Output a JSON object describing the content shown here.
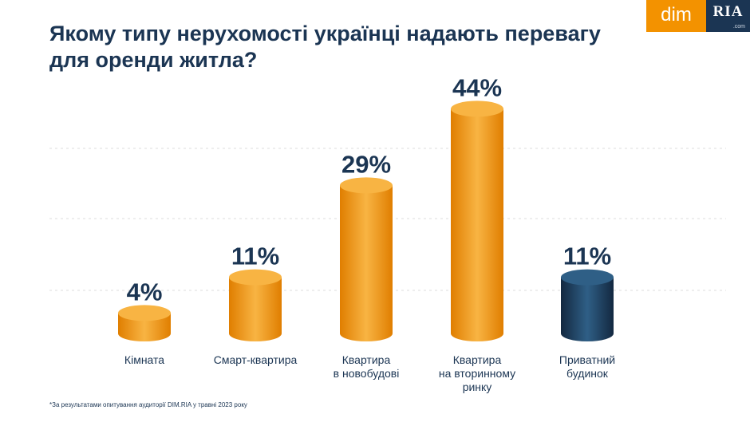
{
  "header": {
    "title": "Якому типу нерухомості українці надають перевагу для оренди житла?"
  },
  "brand": {
    "logo_left": "dim",
    "logo_right": "RIA",
    "logo_suffix": ".com"
  },
  "colors": {
    "orange_light": "#f8b443",
    "orange": "#f39200",
    "orange_dark": "#e07e00",
    "navy_light": "#2f5f86",
    "navy": "#1b3553",
    "navy_dark": "#132840",
    "text": "#1b3553",
    "grid": "#dcdcdc"
  },
  "chart_data": {
    "type": "bar",
    "categories": [
      [
        "Кімната"
      ],
      [
        "Смарт-квартира"
      ],
      [
        "Квартира",
        "в новобудові"
      ],
      [
        "Квартира",
        "на вторинному",
        "ринку"
      ],
      [
        "Приватний",
        "будинок"
      ]
    ],
    "values": [
      4,
      11,
      29,
      44,
      11
    ],
    "value_labels": [
      "4%",
      "11%",
      "29%",
      "44%",
      "11%"
    ],
    "bar_colors": [
      "orange",
      "orange",
      "orange",
      "orange",
      "navy"
    ],
    "ylim": [
      0,
      50
    ],
    "grid": true,
    "legend": "none"
  },
  "footnote": "*За результатами опитування аудиторії DIM.RIA у травні 2023 року"
}
